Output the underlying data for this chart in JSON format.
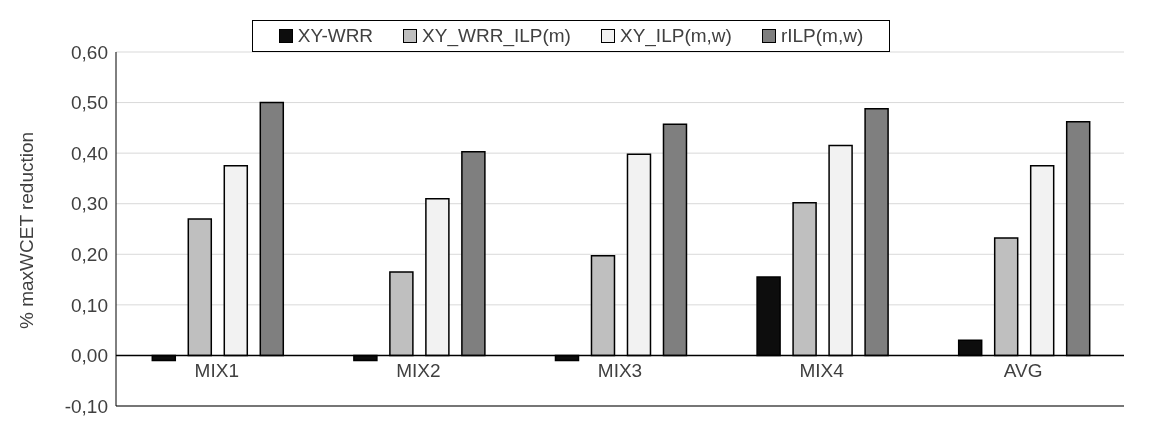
{
  "chart_data": {
    "type": "bar",
    "ylabel": "% maxWCET reduction",
    "categories": [
      "MIX1",
      "MIX2",
      "MIX3",
      "MIX4",
      "AVG"
    ],
    "series": [
      {
        "name": "XY-WRR",
        "color": "#0d0d0d",
        "values": [
          -0.01,
          -0.01,
          -0.01,
          0.155,
          0.03
        ]
      },
      {
        "name": "XY_WRR_ILP(m)",
        "color": "#bfbfbf",
        "values": [
          0.27,
          0.165,
          0.197,
          0.302,
          0.232
        ]
      },
      {
        "name": "XY_ILP(m,w)",
        "color": "#f2f2f2",
        "values": [
          0.375,
          0.31,
          0.398,
          0.415,
          0.375
        ]
      },
      {
        "name": "rILP(m,w)",
        "color": "#7f7f7f",
        "values": [
          0.5,
          0.403,
          0.457,
          0.488,
          0.462
        ]
      }
    ],
    "ylim": [
      -0.1,
      0.6
    ],
    "yticks": [
      {
        "value": -0.1,
        "label": "-0,10"
      },
      {
        "value": 0,
        "label": "0,00"
      },
      {
        "value": 0.1,
        "label": "0,10"
      },
      {
        "value": 0.2,
        "label": "0,20"
      },
      {
        "value": 0.3,
        "label": "0,30"
      },
      {
        "value": 0.4,
        "label": "0,40"
      },
      {
        "value": 0.5,
        "label": "0,50"
      },
      {
        "value": 0.6,
        "label": "0,60"
      }
    ],
    "grid": "y",
    "legend": "top"
  }
}
